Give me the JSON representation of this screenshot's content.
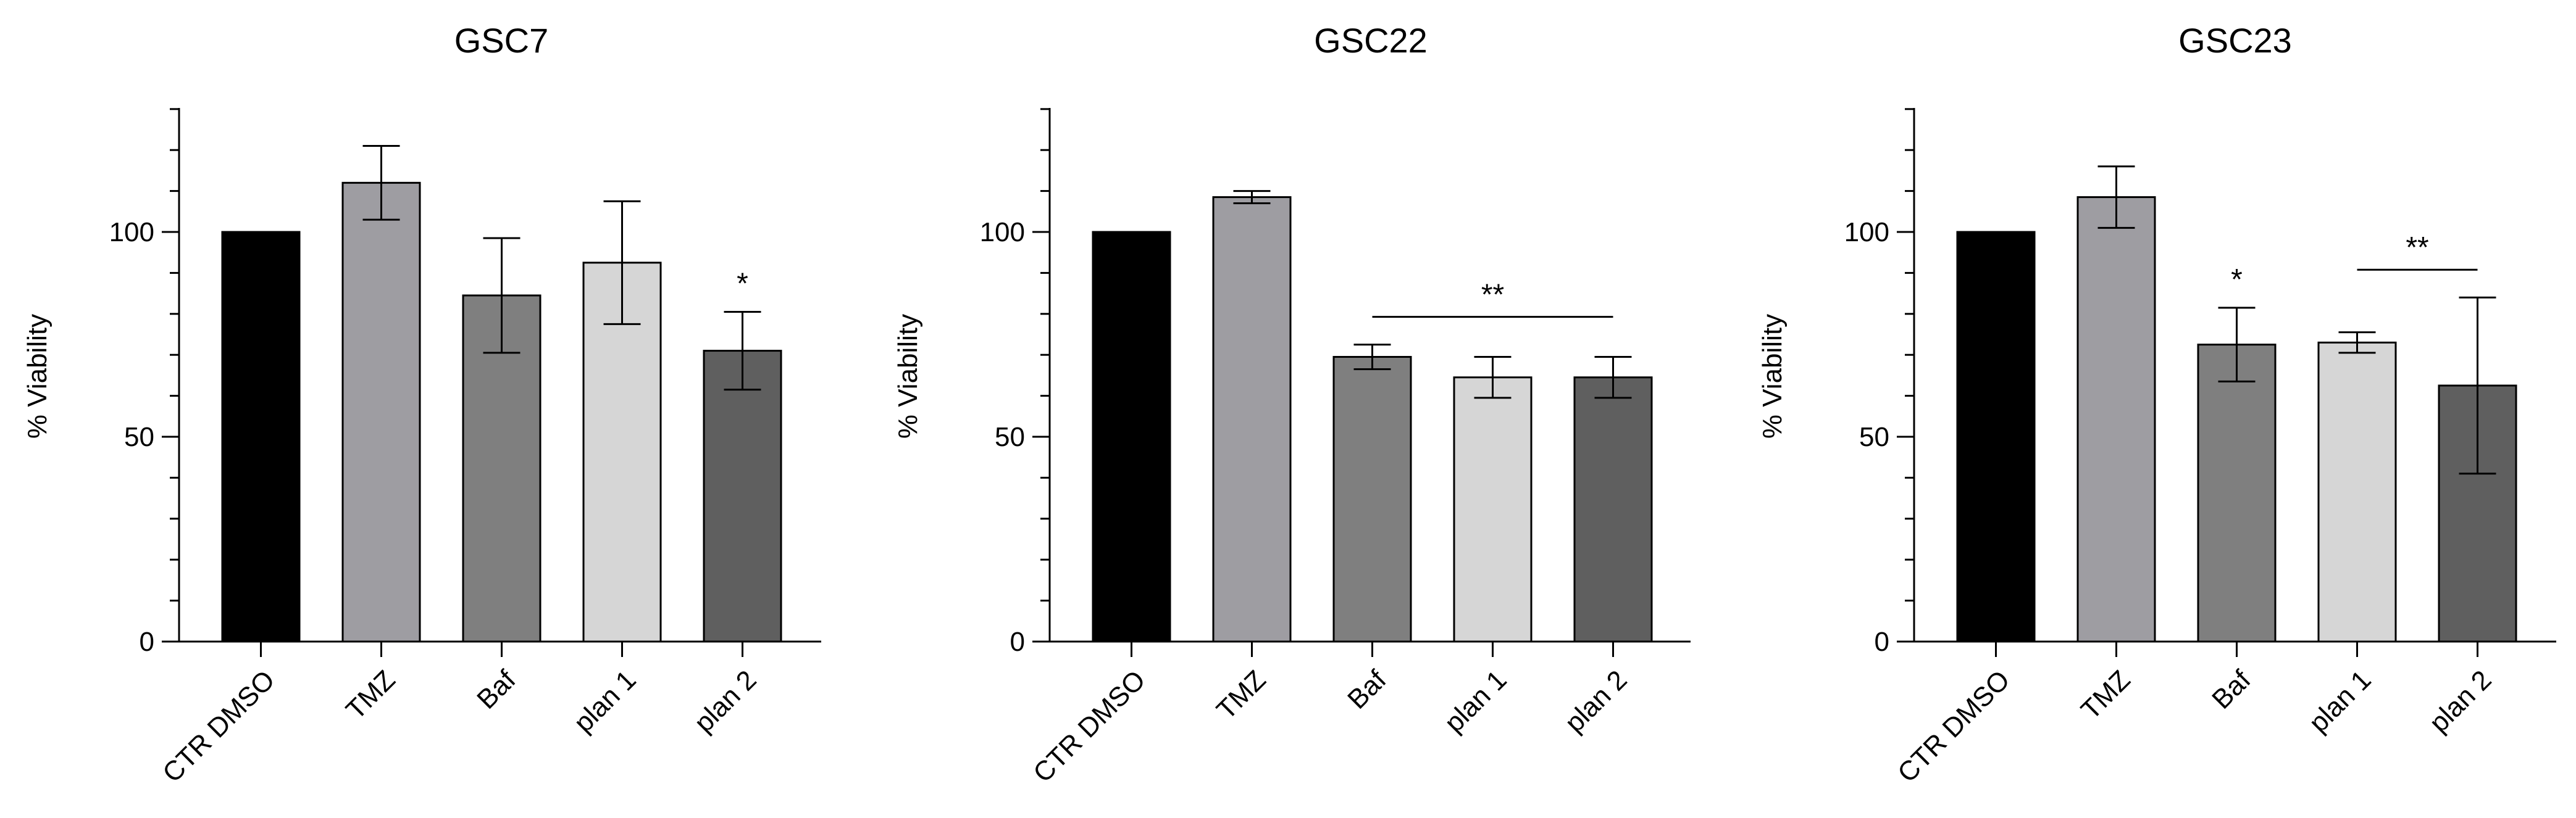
{
  "chart_data": [
    {
      "type": "bar",
      "title": "GSC7",
      "ylabel": "% Viability",
      "xlabel": "",
      "categories": [
        "CTR DMSO",
        "TMZ",
        "Baf",
        "plan 1",
        "plan 2"
      ],
      "values": [
        100,
        112,
        84.5,
        92.5,
        71
      ],
      "errors": [
        0,
        9,
        14,
        15,
        9.5
      ],
      "ylim": [
        0,
        130
      ],
      "yticks": [
        0,
        50,
        100
      ],
      "colors": [
        "#000000",
        "#9e9da2",
        "#7f7f7f",
        "#d6d6d6",
        "#5f5f5f"
      ],
      "grid": false,
      "annotations": [
        {
          "text": "*",
          "bars": [
            4
          ],
          "type": "single"
        }
      ]
    },
    {
      "type": "bar",
      "title": "GSC22",
      "ylabel": "% Viability",
      "xlabel": "",
      "categories": [
        "CTR DMSO",
        "TMZ",
        "Baf",
        "plan 1",
        "plan 2"
      ],
      "values": [
        100,
        108.5,
        69.5,
        64.5,
        64.5
      ],
      "errors": [
        0,
        1.5,
        3,
        5,
        5
      ],
      "ylim": [
        0,
        130
      ],
      "yticks": [
        0,
        50,
        100
      ],
      "colors": [
        "#000000",
        "#9e9da2",
        "#7f7f7f",
        "#d6d6d6",
        "#5f5f5f"
      ],
      "grid": false,
      "annotations": [
        {
          "text": "**",
          "bars": [
            2,
            4
          ],
          "type": "bracket"
        }
      ]
    },
    {
      "type": "bar",
      "title": "GSC23",
      "ylabel": "% Viability",
      "xlabel": "",
      "categories": [
        "CTR DMSO",
        "TMZ",
        "Baf",
        "plan 1",
        "plan 2"
      ],
      "values": [
        100,
        108.5,
        72.5,
        73,
        62.5
      ],
      "errors": [
        0,
        7.5,
        9,
        2.5,
        21.5
      ],
      "ylim": [
        0,
        130
      ],
      "yticks": [
        0,
        50,
        100
      ],
      "colors": [
        "#000000",
        "#9e9da2",
        "#7f7f7f",
        "#d6d6d6",
        "#5f5f5f"
      ],
      "grid": false,
      "annotations": [
        {
          "text": "*",
          "bars": [
            2
          ],
          "type": "single"
        },
        {
          "text": "**",
          "bars": [
            3,
            4
          ],
          "type": "bracket"
        }
      ]
    }
  ]
}
